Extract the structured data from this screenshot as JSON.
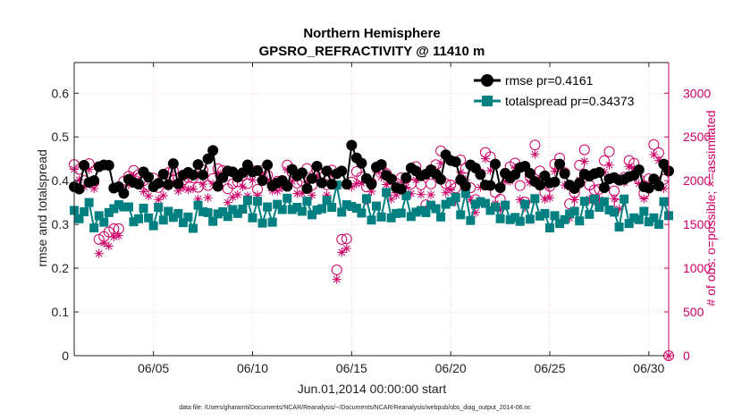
{
  "chart_data": {
    "type": "line",
    "title": "Northern Hemisphere",
    "subtitle": "GPSRO_REFRACTIVITY @ 11410 m",
    "xlabel": "Jun.01,2014 00:00:00 start",
    "ylabel": "rmse and totalspread",
    "ylabel_right": "# of obs: o=possible; ×=assimilated",
    "footnote": "data file: /Users/gharamti/Documents/NCAR/Reanalysis/~/Documents/NCAR/Reanalysis/webpub/obs_diag_output_2014-06.nc",
    "xlim": [
      1,
      31
    ],
    "ylim": [
      0,
      0.67
    ],
    "ylim_right": [
      0,
      3350
    ],
    "x_ticks": [
      5,
      10,
      15,
      20,
      25,
      30
    ],
    "x_tick_labels": [
      "06/05",
      "06/10",
      "06/15",
      "06/20",
      "06/25",
      "06/30"
    ],
    "y_ticks": [
      0,
      0.1,
      0.2,
      0.3,
      0.4,
      0.5,
      0.6
    ],
    "y_tick_labels": [
      "0",
      "0.1",
      "0.2",
      "0.3",
      "0.4",
      "0.5",
      "0.6"
    ],
    "y_right_ticks": [
      0,
      500,
      1000,
      1500,
      2000,
      2500,
      3000
    ],
    "y_right_tick_labels": [
      "0",
      "500",
      "1000",
      "1500",
      "2000",
      "2500",
      "3000"
    ],
    "legend_position": "top-right",
    "series": [
      {
        "name": "rmse pr=0.4161",
        "marker": "filled-circle",
        "color": "#000000",
        "axis": "left",
        "x": [],
        "values": []
      },
      {
        "name": "totalspread pr=0.34373",
        "marker": "filled-square",
        "color": "#008080",
        "axis": "left",
        "x": [],
        "values": []
      },
      {
        "name": "possible",
        "marker": "open-circle",
        "color": "#cc0066",
        "axis": "right",
        "x": [],
        "values": []
      },
      {
        "name": "assimilated",
        "marker": "asterisk",
        "color": "#cc0066",
        "axis": "right",
        "x": [],
        "values": []
      }
    ],
    "colors": {
      "rmse": "#000000",
      "spread": "#008080",
      "obs": "#cc0066",
      "grid": "#f2bcd3"
    }
  }
}
